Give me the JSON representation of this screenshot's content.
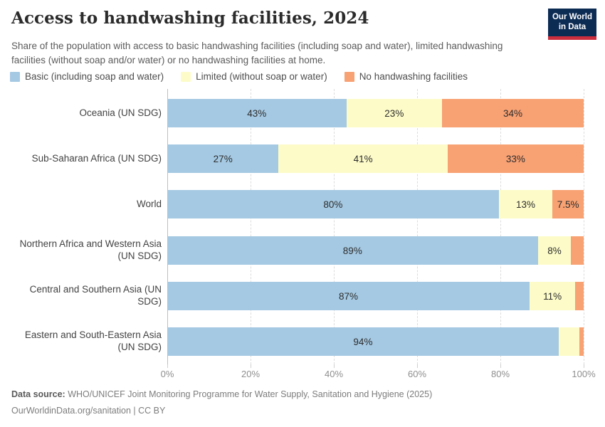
{
  "header": {
    "title": "Access to handwashing facilities, 2024",
    "subtitle": "Share of the population with access to basic handwashing facilities (including soap and water), limited handwashing facilities (without soap and/or water) or no handwashing facilities at home."
  },
  "logo": {
    "line1": "Our World",
    "line2": "in Data",
    "bg_color": "#0d2c54",
    "stripe_color": "#cc2e3e"
  },
  "chart_data": {
    "type": "bar",
    "variant": "horizontal-stacked-percentage",
    "title": "Access to handwashing facilities, 2024",
    "categories": [
      "Oceania (UN SDG)",
      "Sub-Saharan Africa (UN SDG)",
      "World",
      "Northern Africa and Western Asia (UN SDG)",
      "Central and Southern Asia (UN SDG)",
      "Eastern and South-Eastern Asia (UN SDG)"
    ],
    "series": [
      {
        "name": "Basic (including soap and water)",
        "color": "#a5c9e3",
        "values": [
          43,
          27,
          80,
          89,
          87,
          94
        ],
        "labels": [
          "43%",
          "27%",
          "80%",
          "89%",
          "87%",
          "94%"
        ]
      },
      {
        "name": "Limited (without soap or water)",
        "color": "#fdfcc9",
        "values": [
          23,
          41,
          13,
          8,
          11,
          5
        ],
        "labels": [
          "23%",
          "41%",
          "13%",
          "8%",
          "11%",
          ""
        ]
      },
      {
        "name": "No handwashing facilities",
        "color": "#f8a173",
        "values": [
          34,
          33,
          7.5,
          3,
          2,
          1
        ],
        "labels": [
          "34%",
          "33%",
          "7.5%",
          "",
          "",
          ""
        ]
      }
    ],
    "xlabel": "",
    "ylabel": "",
    "xlim": [
      0,
      100
    ],
    "x_ticks": [
      "0%",
      "20%",
      "40%",
      "60%",
      "80%",
      "100%"
    ],
    "grid": "vertical-dashed",
    "legend_position": "top"
  },
  "footer": {
    "datasource_label": "Data source:",
    "datasource_text": "WHO/UNICEF Joint Monitoring Programme for Water Supply, Sanitation and Hygiene (2025)",
    "attribution": "OurWorldinData.org/sanitation | CC BY"
  }
}
